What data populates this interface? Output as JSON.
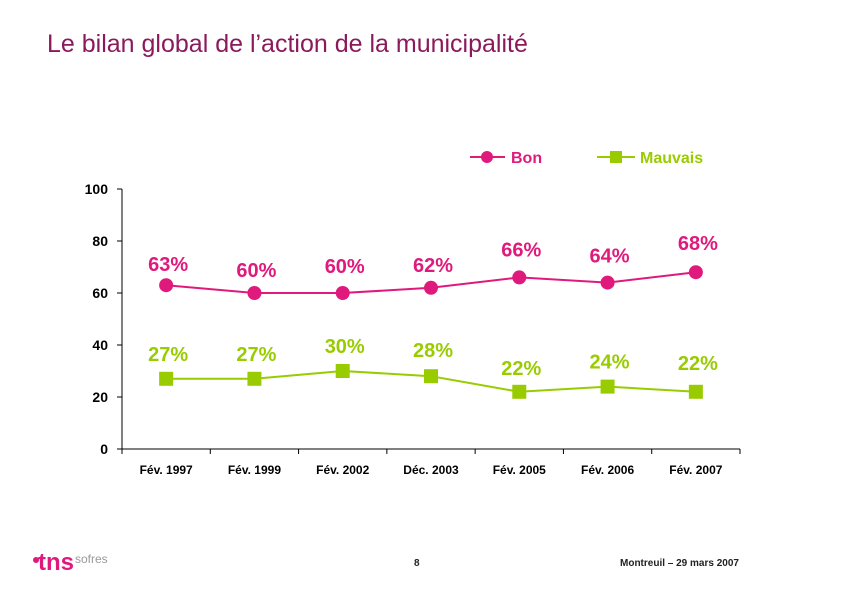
{
  "title": "Le bilan global de l’action de la municipalité",
  "footer": {
    "page_number": "8",
    "date_text": "Montreuil – 29 mars 2007",
    "logo_text": "tns",
    "logo_suffix": "sofres"
  },
  "colors": {
    "title": "#8b1a5c",
    "bon": "#e0197d",
    "mauvais": "#99cc00",
    "axis": "#000000"
  },
  "chart_data": {
    "type": "line",
    "categories": [
      "Fév. 1997",
      "Fév. 1999",
      "Fév. 2002",
      "Déc. 2003",
      "Fév. 2005",
      "Fév. 2006",
      "Fév. 2007"
    ],
    "ylim": [
      0,
      100
    ],
    "yticks": [
      0,
      20,
      40,
      60,
      80,
      100
    ],
    "grid": false,
    "legend_position": "top-right",
    "series": [
      {
        "name": "Bon",
        "marker": "circle",
        "values": [
          63,
          60,
          60,
          62,
          66,
          64,
          68
        ],
        "labels": [
          "63%",
          "60%",
          "60%",
          "62%",
          "66%",
          "64%",
          "68%"
        ]
      },
      {
        "name": "Mauvais",
        "marker": "square",
        "values": [
          27,
          27,
          30,
          28,
          22,
          24,
          22
        ],
        "labels": [
          "27%",
          "27%",
          "30%",
          "28%",
          "22%",
          "24%",
          "22%"
        ]
      }
    ]
  }
}
